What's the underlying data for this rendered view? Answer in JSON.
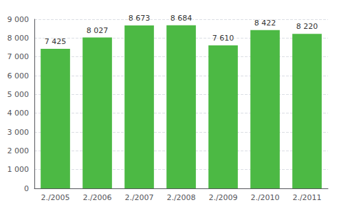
{
  "chart_data": {
    "type": "bar",
    "categories": [
      "2./2005",
      "2./2006",
      "2./2007",
      "2./2008",
      "2./2009",
      "2./2010",
      "2./2011"
    ],
    "values": [
      7425,
      8027,
      8673,
      8684,
      7610,
      8422,
      8220
    ],
    "value_labels": [
      "7 425",
      "8 027",
      "8 673",
      "8 684",
      "7 610",
      "8 422",
      "8 220"
    ],
    "data_labels": true,
    "color": "#4cb944",
    "ylim": [
      0,
      9000
    ],
    "yticks": [
      0,
      {
        "value": 1000,
        "label": "1 000"
      },
      {
        "value": 2000,
        "label": "2 000"
      },
      {
        "value": 3000,
        "label": "3 000"
      },
      {
        "value": 4000,
        "label": "4 000"
      },
      {
        "value": 5000,
        "label": "5 000"
      },
      {
        "value": 6000,
        "label": "6 000"
      },
      {
        "value": 7000,
        "label": "7 000"
      },
      {
        "value": 8000,
        "label": "8 000"
      },
      {
        "value": 9000,
        "label": "9 000"
      }
    ],
    "grid": true
  }
}
